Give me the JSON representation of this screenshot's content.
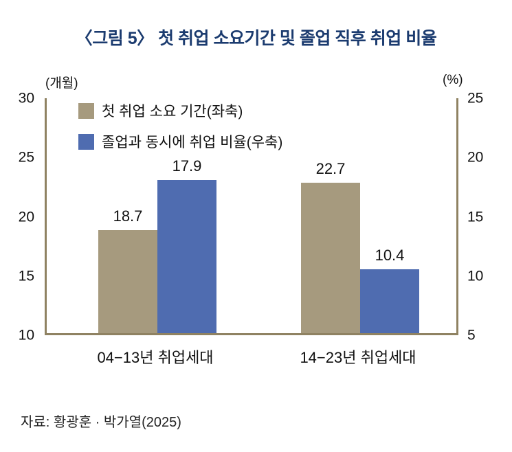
{
  "title": "〈그림 5〉 첫 취업 소요기간 및 졸업 직후 취업 비율",
  "source": "자료: 황광훈 · 박가열(2025)",
  "colors": {
    "title": "#1b3b6f",
    "bar_tan": "#a69a7e",
    "bar_blue": "#4f6cb0",
    "axis": "#8f8262",
    "text": "#111111"
  },
  "chart_data": {
    "type": "bar",
    "categories": [
      "04−13년 취업세대",
      "14−23년 취업세대"
    ],
    "series": [
      {
        "name": "첫 취업 소요 기간(좌축)",
        "axis": "left",
        "color_key": "bar_tan",
        "values": [
          18.7,
          22.7
        ]
      },
      {
        "name": "졸업과 동시에 취업 비율(우축)",
        "axis": "right",
        "color_key": "bar_blue",
        "values": [
          17.9,
          10.4
        ]
      }
    ],
    "left_axis": {
      "label": "(개월)",
      "min": 10,
      "max": 30,
      "ticks": [
        30,
        25,
        20,
        15,
        10
      ]
    },
    "right_axis": {
      "label": "(%)",
      "min": 5,
      "max": 25,
      "ticks": [
        25,
        20,
        15,
        10,
        5
      ]
    },
    "legend_position": "top-left",
    "grid": false
  }
}
